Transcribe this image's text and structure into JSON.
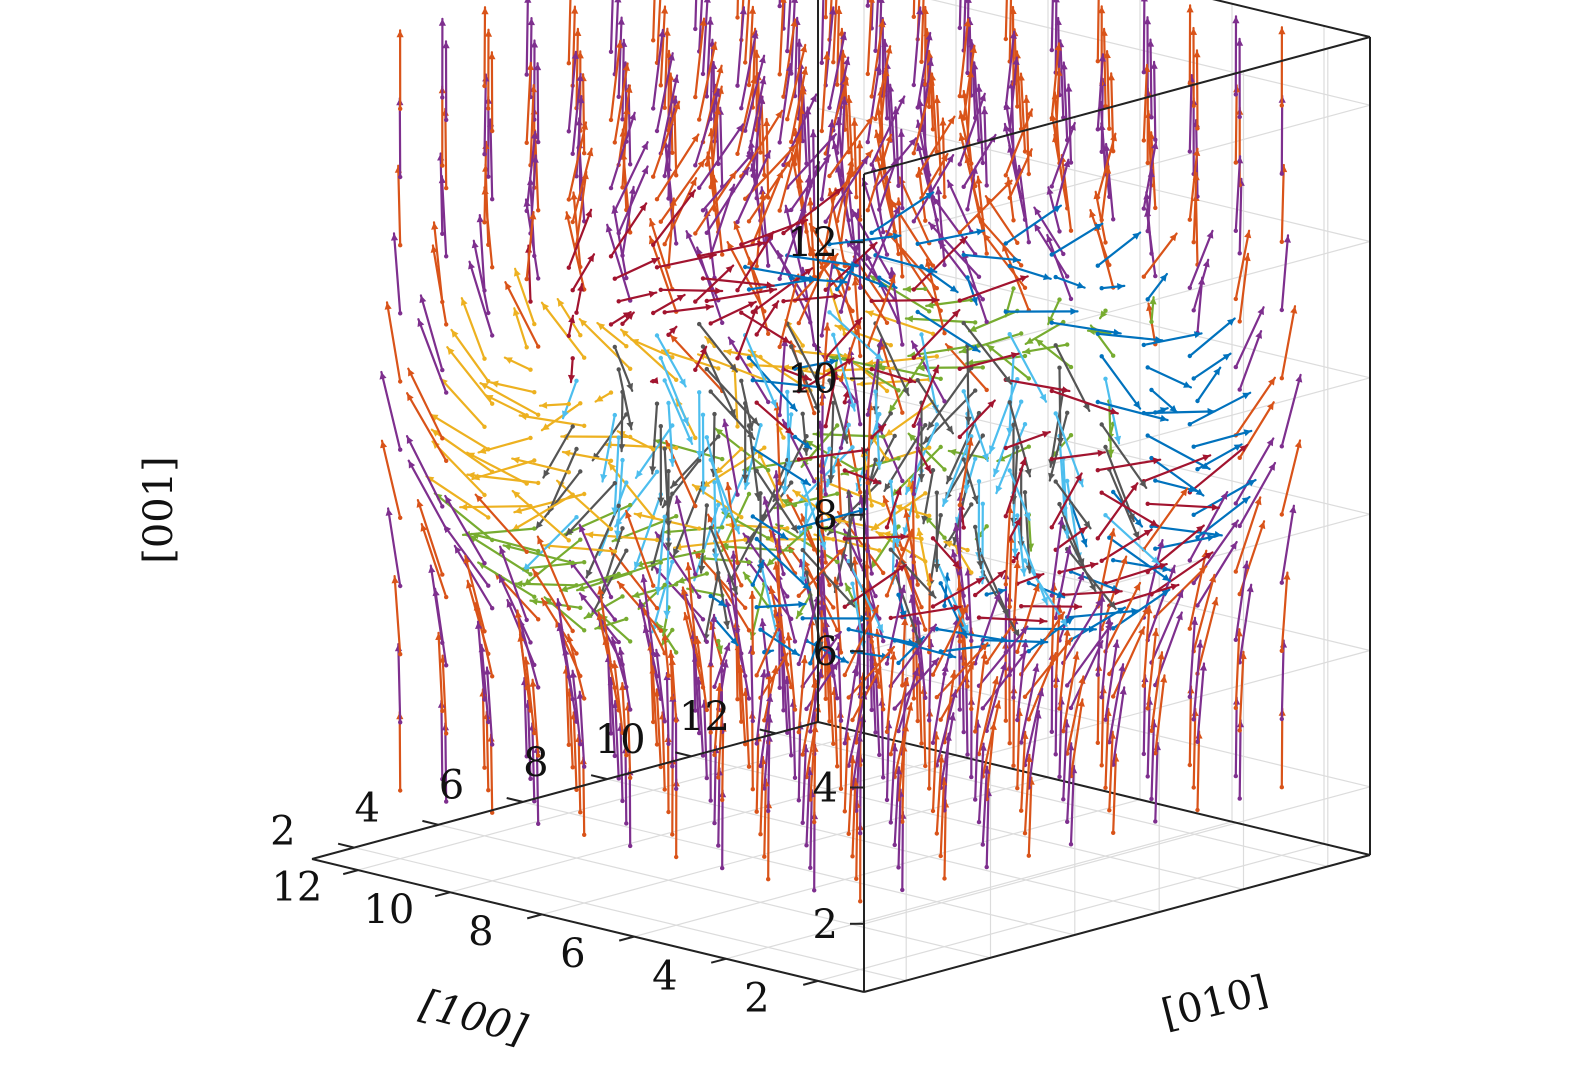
{
  "chart_data": {
    "type": "quiver3d",
    "title": "",
    "xlabel": "[100]",
    "ylabel": "[010]",
    "zlabel": "[001]",
    "xlim": [
      1,
      13
    ],
    "ylim": [
      1,
      13
    ],
    "zlim": [
      1,
      13
    ],
    "xticks": [
      "2",
      "4",
      "6",
      "8",
      "10",
      "12"
    ],
    "yticks": [
      "2",
      "4",
      "6",
      "8",
      "10",
      "12"
    ],
    "zticks": [
      "2",
      "4",
      "6",
      "8",
      "10",
      "12"
    ],
    "grid": true,
    "box": true,
    "lattice": {
      "x": [
        2,
        3,
        4,
        5,
        6,
        7,
        8,
        9,
        10,
        11,
        12
      ],
      "y": [
        2,
        3,
        4,
        5,
        6,
        7,
        8,
        9,
        10,
        11,
        12
      ],
      "z": [
        2,
        3,
        4,
        5,
        6,
        7,
        8,
        9,
        10,
        11,
        12
      ]
    },
    "texture": "magnetic hopfion: spin vectors on a cubic lattice, colored by direction",
    "colors": {
      "up": "#d95319",
      "up_alt": "#7e2f8e",
      "down": "#4dbeee",
      "down_alt": "#555555",
      "plus_x": "#edb120",
      "minus_x": "#0072bd",
      "plus_y": "#a2142f",
      "minus_y": "#77ac30"
    }
  }
}
